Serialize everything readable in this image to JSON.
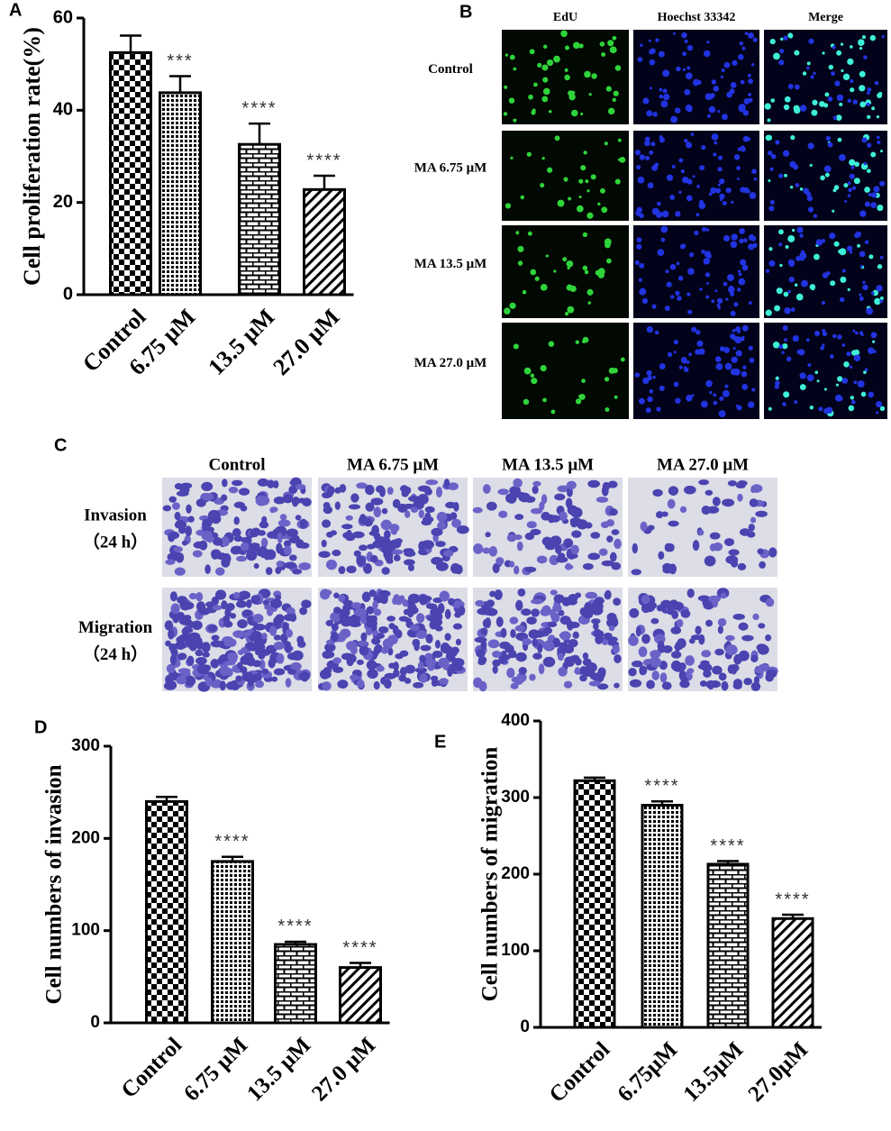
{
  "panel_letters": [
    "A",
    "B",
    "C",
    "D",
    "E"
  ],
  "chart_data": [
    {
      "type": "bar",
      "y_label": "Cell proliferation rate(%)",
      "categories": [
        "Control",
        "6.75 μM",
        "13.5 μM",
        "27.0 μM"
      ],
      "values": [
        52.5,
        43.8,
        32.6,
        22.8
      ],
      "errors": [
        3.7,
        3.6,
        4.5,
        3.0
      ],
      "annotations": [
        null,
        "***",
        "****",
        "****"
      ],
      "ylim": [
        0,
        60
      ],
      "yticks": [
        0,
        20,
        40,
        60
      ],
      "color": "#000000"
    },
    {
      "type": "bar",
      "y_label": "Cell numbers of invasion",
      "categories": [
        "Control",
        "6.75 μM",
        "13.5 μM",
        "27.0 μM"
      ],
      "values": [
        240,
        175,
        85,
        60
      ],
      "errors": [
        5,
        5,
        3,
        5
      ],
      "annotations": [
        null,
        "****",
        "****",
        "****"
      ],
      "ylim": [
        0,
        300
      ],
      "yticks": [
        0,
        100,
        200,
        300
      ],
      "color": "#000000"
    },
    {
      "type": "bar",
      "y_label": "Cell numbers of migration",
      "categories": [
        "Control",
        "6.75μM",
        "13.5μM",
        "27.0μM"
      ],
      "values": [
        322,
        290,
        213,
        142
      ],
      "errors": [
        4,
        5,
        4,
        5
      ],
      "annotations": [
        null,
        "****",
        "****",
        "****"
      ],
      "ylim": [
        0,
        400
      ],
      "yticks": [
        0,
        100,
        200,
        300,
        400
      ],
      "color": "#000000"
    }
  ],
  "panel_b": {
    "columns": [
      "EdU",
      "Hoechst 33342",
      "Merge"
    ],
    "rows": [
      "Control",
      "MA 6.75 μM",
      "MA 13.5 μM",
      "MA 27.0 μM"
    ]
  },
  "panel_c": {
    "columns": [
      "Control",
      "MA 6.75 μM",
      "MA 13.5 μM",
      "MA 27.0 μM"
    ],
    "rows": [
      [
        "Invasion",
        "（24 h）"
      ],
      [
        "Migration",
        "（24 h）"
      ]
    ]
  }
}
